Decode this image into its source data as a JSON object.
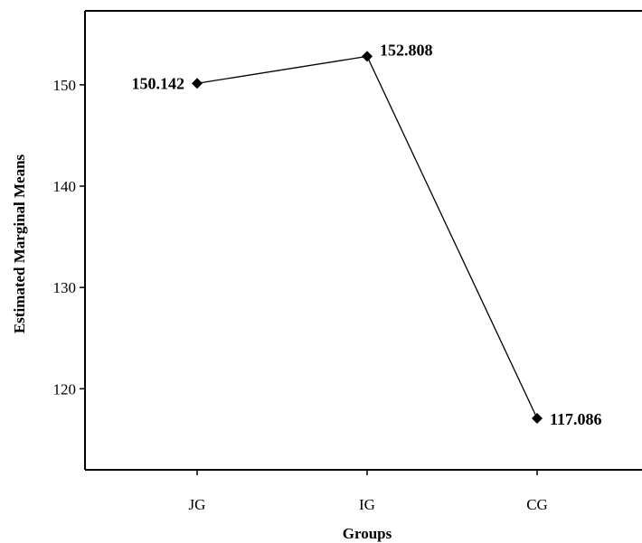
{
  "chart_data": {
    "type": "line",
    "title": "",
    "xlabel": "Groups",
    "ylabel": "Estimated Marginal Means",
    "categories": [
      "JG",
      "IG",
      "CG"
    ],
    "series": [
      {
        "values": [
          150.142,
          152.808,
          117.086
        ],
        "labels": [
          "150.142",
          "152.808",
          "117.086"
        ],
        "marker": "diamond",
        "color": "#000000"
      }
    ],
    "yticks": [
      120,
      130,
      140,
      150
    ],
    "ytick_labels": [
      "120",
      "130",
      "140",
      "150"
    ],
    "ylim": [
      112,
      157.3
    ],
    "grid": false,
    "legend": "none"
  }
}
